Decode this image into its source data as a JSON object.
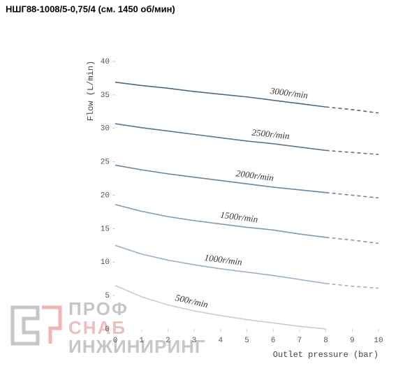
{
  "chart_data": {
    "type": "line",
    "title": "НШГ88-1008/5-0,75/4 (см. 1450 об/мин)",
    "x_label": "Outlet pressure (bar)",
    "y_label": "Flow (L/min)",
    "x": [
      0,
      1,
      2,
      3,
      4,
      5,
      6,
      7,
      8,
      9,
      10
    ],
    "xlim": [
      0,
      10
    ],
    "xticks": [
      0,
      1,
      2,
      3,
      4,
      5,
      6,
      7,
      8,
      9,
      10
    ],
    "ylim": [
      0,
      40
    ],
    "yticks": [
      0,
      5,
      10,
      15,
      20,
      25,
      30,
      35,
      40
    ],
    "grid": false,
    "dashed_from": 8,
    "series": [
      {
        "name": "3000r/min",
        "color": "#4e6a80",
        "values": [
          36.9,
          36.4,
          36.0,
          35.5,
          35.1,
          34.7,
          34.2,
          33.7,
          33.2,
          32.8,
          32.3
        ]
      },
      {
        "name": "2500r/min",
        "color": "#5a778f",
        "values": [
          30.7,
          30.1,
          29.6,
          29.1,
          28.6,
          28.1,
          27.7,
          27.2,
          26.7,
          26.4,
          26.1
        ]
      },
      {
        "name": "2000r/min",
        "color": "#6986a0",
        "values": [
          24.5,
          23.8,
          23.2,
          22.7,
          22.2,
          21.7,
          21.2,
          20.8,
          20.4,
          20.0,
          19.6
        ]
      },
      {
        "name": "1500r/min",
        "color": "#7e9bb2",
        "values": [
          18.6,
          17.6,
          16.8,
          16.2,
          15.7,
          15.2,
          14.8,
          14.2,
          13.7,
          13.3,
          12.8
        ]
      },
      {
        "name": "1000r/min",
        "color": "#9ab1c5",
        "values": [
          12.5,
          11.2,
          10.3,
          9.6,
          9.0,
          8.5,
          8.0,
          7.4,
          6.8,
          6.4,
          6.1
        ]
      },
      {
        "name": "500r/min",
        "color": "#c0cfdb",
        "values": [
          6.5,
          4.8,
          3.6,
          2.7,
          2.0,
          1.4,
          0.9,
          0.4,
          0,
          null,
          null
        ]
      }
    ]
  },
  "watermark": {
    "line1": "ПРОФ",
    "line2": "СНАБ",
    "line3": "ИНЖИНИРИНГ"
  }
}
